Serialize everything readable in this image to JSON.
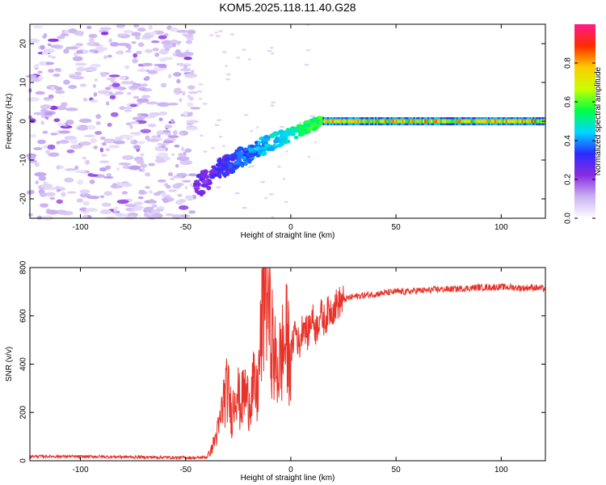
{
  "figure": {
    "title": "KOM5.2025.118.11.40.G28"
  },
  "chart_data": [
    {
      "type": "heatmap",
      "xlabel": "Height of straight line (km)",
      "ylabel": "Frequency (Hz)",
      "xlim": [
        -124,
        121
      ],
      "ylim": [
        -25,
        25
      ],
      "xticks": [
        -100,
        -50,
        0,
        50,
        100
      ],
      "yticks": [
        -20,
        -10,
        0,
        10,
        20
      ],
      "colorbar": {
        "label": "Normalized spectral amplitude",
        "range": [
          0.0,
          1.0
        ],
        "ticks": [
          0.0,
          0.2,
          0.4,
          0.6,
          0.8
        ],
        "tick_labels": [
          "0.0",
          "0.2",
          "0.4",
          "0.6",
          "0.8"
        ],
        "colormap": [
          "#ffffff",
          "#c9b2f2",
          "#8a2be2",
          "#2b2bff",
          "#00d8ff",
          "#00ff44",
          "#c8ff00",
          "#ffcc00",
          "#ff2a00",
          "#ff1a8c"
        ]
      },
      "features": {
        "noise_region_x": [
          -124,
          -45
        ],
        "noise_amplitude": 0.15,
        "chirp_track_x": [
          -45,
          15
        ],
        "chirp_track_freq_hz": [
          -18,
          0
        ],
        "stable_line_x": [
          15,
          121
        ],
        "stable_line_freq_hz": 0,
        "stable_line_amplitude": 0.7
      }
    },
    {
      "type": "line",
      "xlabel": "Height of straight line (km)",
      "ylabel": "SNR (v/v)",
      "xlim": [
        -124,
        121
      ],
      "ylim": [
        0,
        800
      ],
      "xticks": [
        -100,
        -50,
        0,
        50,
        100
      ],
      "yticks": [
        0,
        200,
        400,
        600,
        800
      ],
      "line_color": "#e8332a",
      "series": [
        {
          "x": [
            -124,
            -110,
            -100,
            -90,
            -80,
            -70,
            -60,
            -50,
            -45,
            -40,
            -38,
            -36,
            -34,
            -32,
            -30,
            -28,
            -26,
            -24,
            -22,
            -20,
            -18,
            -16,
            -14,
            -12,
            -10,
            -8,
            -6,
            -4,
            -2,
            0,
            2,
            4,
            6,
            8,
            10,
            12,
            14,
            16,
            18,
            20,
            22,
            24,
            26,
            28,
            30,
            35,
            40,
            45,
            50,
            55,
            60,
            65,
            70,
            75,
            80,
            85,
            90,
            95,
            100,
            105,
            110,
            115,
            121
          ],
          "values": [
            18,
            18,
            17,
            17,
            16,
            15,
            14,
            13,
            12,
            15,
            40,
            90,
            140,
            250,
            300,
            180,
            330,
            220,
            290,
            240,
            310,
            260,
            520,
            800,
            600,
            420,
            380,
            450,
            500,
            420,
            560,
            470,
            580,
            520,
            600,
            540,
            610,
            580,
            620,
            630,
            650,
            660,
            670,
            675,
            680,
            685,
            690,
            695,
            700,
            700,
            705,
            705,
            710,
            710,
            712,
            715,
            718,
            718,
            720,
            718,
            715,
            718,
            712
          ]
        }
      ]
    }
  ]
}
